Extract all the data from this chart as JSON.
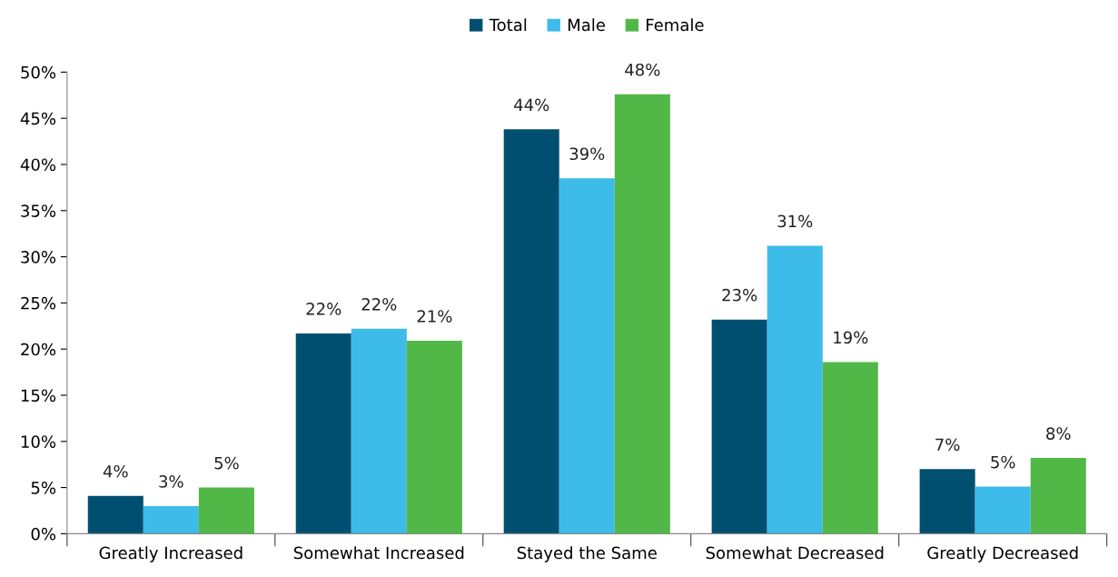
{
  "chart_data": {
    "type": "bar",
    "categories": [
      "Greatly Increased",
      "Somewhat Increased",
      "Stayed the Same",
      "Somewhat Decreased",
      "Greatly Decreased"
    ],
    "series": [
      {
        "name": "Total",
        "color": "#004f71",
        "values": [
          4.1,
          21.7,
          43.8,
          23.2,
          7.0
        ],
        "value_labels": [
          "4%",
          "22%",
          "44%",
          "23%",
          "7%"
        ]
      },
      {
        "name": "Male",
        "color": "#3dbbe9",
        "values": [
          3.0,
          22.2,
          38.5,
          31.2,
          5.1
        ],
        "value_labels": [
          "3%",
          "22%",
          "39%",
          "31%",
          "5%"
        ]
      },
      {
        "name": "Female",
        "color": "#51b848",
        "values": [
          5.0,
          20.9,
          47.6,
          18.6,
          8.2
        ],
        "value_labels": [
          "5%",
          "21%",
          "48%",
          "19%",
          "8%"
        ]
      }
    ],
    "ylim": [
      0,
      50
    ],
    "yticks": [
      {
        "value": 0,
        "label": "0%"
      },
      {
        "value": 5,
        "label": "5%"
      },
      {
        "value": 10,
        "label": "10%"
      },
      {
        "value": 15,
        "label": "15%"
      },
      {
        "value": 20,
        "label": "20%"
      },
      {
        "value": 25,
        "label": "25%"
      },
      {
        "value": 30,
        "label": "30%"
      },
      {
        "value": 35,
        "label": "35%"
      },
      {
        "value": 40,
        "label": "40%"
      },
      {
        "value": 45,
        "label": "45%"
      },
      {
        "value": 50,
        "label": "50%"
      }
    ],
    "grid": false,
    "legend": "top"
  }
}
